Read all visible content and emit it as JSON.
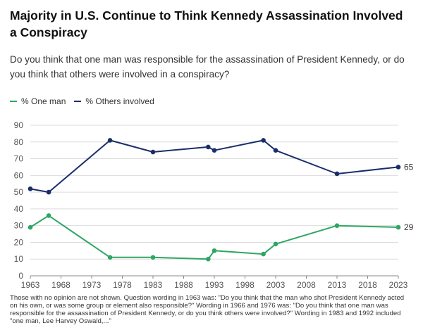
{
  "title": "Majority in U.S. Continue to Think Kennedy Assassination Involved a Conspiracy",
  "subtitle": "Do you think that one man was responsible for the assassination of President Kennedy, or do you think that others were involved in a conspiracy?",
  "footnote": "Those with no opinion are not shown. Question wording in 1963 was: \"Do you think that the man who shot President Kennedy acted on his own, or was some group or element also responsible?\" Wording in 1966 and 1976 was: \"Do you think that one man was responsible for the assassination of President Kennedy, or do you think others were involved?\" Wording in 1983 and 1992 included \"one man, Lee Harvey Oswald,...\"",
  "colors": {
    "one_man": "#2ea664",
    "others": "#1a2e6b",
    "grid": "#dcdcdc",
    "axis_text": "#555555"
  },
  "chart_data": {
    "type": "line",
    "xlim": [
      1963,
      2023
    ],
    "ylim": [
      0,
      90
    ],
    "x_ticks": [
      "1963",
      "1968",
      "1973",
      "1978",
      "1983",
      "1988",
      "1993",
      "1998",
      "2003",
      "2008",
      "2013",
      "2018",
      "2023"
    ],
    "y_ticks": [
      "0",
      "10",
      "20",
      "30",
      "40",
      "50",
      "60",
      "70",
      "80",
      "90"
    ],
    "grid": true,
    "legend_position": "top-left",
    "series": [
      {
        "name": "% One man",
        "color_key": "one_man",
        "end_label": "29",
        "points": [
          {
            "x": 1963,
            "y": 29
          },
          {
            "x": 1966,
            "y": 36
          },
          {
            "x": 1976,
            "y": 11
          },
          {
            "x": 1983,
            "y": 11
          },
          {
            "x": 1992,
            "y": 10
          },
          {
            "x": 1993,
            "y": 15
          },
          {
            "x": 2001,
            "y": 13
          },
          {
            "x": 2003,
            "y": 19
          },
          {
            "x": 2013,
            "y": 30
          },
          {
            "x": 2023,
            "y": 29
          }
        ]
      },
      {
        "name": "% Others involved",
        "color_key": "others",
        "end_label": "65",
        "points": [
          {
            "x": 1963,
            "y": 52
          },
          {
            "x": 1966,
            "y": 50
          },
          {
            "x": 1976,
            "y": 81
          },
          {
            "x": 1983,
            "y": 74
          },
          {
            "x": 1992,
            "y": 77
          },
          {
            "x": 1993,
            "y": 75
          },
          {
            "x": 2001,
            "y": 81
          },
          {
            "x": 2003,
            "y": 75
          },
          {
            "x": 2013,
            "y": 61
          },
          {
            "x": 2023,
            "y": 65
          }
        ]
      }
    ]
  }
}
